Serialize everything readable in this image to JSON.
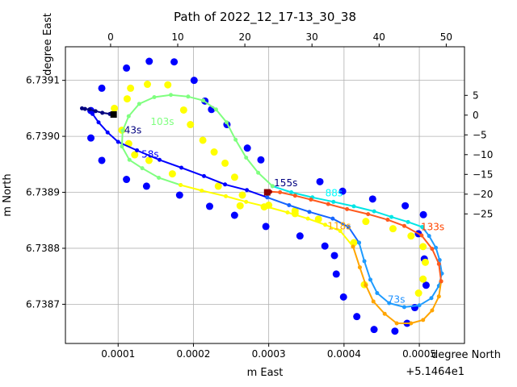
{
  "chart_data": {
    "type": "scatter",
    "title": "Path of 2022_12_17-13_30_38",
    "xlabel": "m East",
    "ylabel": "m North",
    "top_axis_label": "degree East",
    "right_axis_label": "degree North",
    "offset_text": "+5.1464e1",
    "grid": true,
    "xlim": [
      3e-05,
      0.00056
    ],
    "ylim": [
      6.73863,
      6.73916
    ],
    "x_ticks": [
      0.0001,
      0.0002,
      0.0003,
      0.0004,
      0.0005
    ],
    "x_tick_labels": [
      "0.0001",
      "0.0002",
      "0.0003",
      "0.0004",
      "0.0005"
    ],
    "y_ticks": [
      6.7387,
      6.7388,
      6.7389,
      6.739,
      6.7391
    ],
    "y_tick_labels": [
      "6.7387",
      "6.7388",
      "6.7389",
      "6.7390",
      "6.7391"
    ],
    "top_ticks": [
      0,
      10,
      20,
      30,
      40,
      50
    ],
    "top_tick_labels": [
      "0",
      "10",
      "20",
      "30",
      "40",
      "50"
    ],
    "right_ticks": [
      5,
      0,
      -5,
      -10,
      -15,
      -20,
      -25
    ],
    "right_tick_labels": [
      "5",
      "0",
      "−5",
      "−10",
      "−15",
      "−20",
      "−25"
    ],
    "time_labels": [
      {
        "label": "43s",
        "x": 0.000108,
        "y": 6.739005,
        "color": "#000080"
      },
      {
        "label": "58s",
        "x": 0.000131,
        "y": 6.738962,
        "color": "#0000ff"
      },
      {
        "label": "103s",
        "x": 0.000143,
        "y": 6.73902,
        "color": "#7fff7f"
      },
      {
        "label": "155s",
        "x": 0.000307,
        "y": 6.738911,
        "color": "#000080"
      },
      {
        "label": "88s",
        "x": 0.000375,
        "y": 6.738893,
        "color": "#00ffff"
      },
      {
        "label": "118s",
        "x": 0.000378,
        "y": 6.738834,
        "color": "#ffa500"
      },
      {
        "label": "133s",
        "x": 0.000502,
        "y": 6.738832,
        "color": "#ff4500"
      },
      {
        "label": "73s",
        "x": 0.000458,
        "y": 6.738703,
        "color": "#1e90ff"
      }
    ],
    "blue_points": [
      {
        "x": 6.38e-05,
        "y": 6.739046
      },
      {
        "x": 7.83e-05,
        "y": 6.739086
      },
      {
        "x": 6.38e-05,
        "y": 6.738997
      },
      {
        "x": 7.83e-05,
        "y": 6.738957
      },
      {
        "x": 0.0001111,
        "y": 6.739122
      },
      {
        "x": 0.0001413,
        "y": 6.739134
      },
      {
        "x": 0.0001744,
        "y": 6.739133
      },
      {
        "x": 0.0002009,
        "y": 6.7391
      },
      {
        "x": 0.0002153,
        "y": 6.739063
      },
      {
        "x": 0.000224,
        "y": 6.739048
      },
      {
        "x": 0.0002445,
        "y": 6.739021
      },
      {
        "x": 0.0002716,
        "y": 6.738979
      },
      {
        "x": 0.0002896,
        "y": 6.738958
      },
      {
        "x": 0.000368,
        "y": 6.738919
      },
      {
        "x": 0.0003981,
        "y": 6.738902
      },
      {
        "x": 0.000438,
        "y": 6.738888
      },
      {
        "x": 0.0004813,
        "y": 6.738876
      },
      {
        "x": 0.0005054,
        "y": 6.73886
      },
      {
        "x": 0.0004988,
        "y": 6.738826
      },
      {
        "x": 0.0005066,
        "y": 6.738781
      },
      {
        "x": 0.000509,
        "y": 6.738734
      },
      {
        "x": 0.000494,
        "y": 6.738694
      },
      {
        "x": 0.0004838,
        "y": 6.738666
      },
      {
        "x": 0.0004676,
        "y": 6.738652
      },
      {
        "x": 0.0004399,
        "y": 6.738655
      },
      {
        "x": 0.000417,
        "y": 6.738678
      },
      {
        "x": 0.0003993,
        "y": 6.738713
      },
      {
        "x": 0.0003897,
        "y": 6.738754
      },
      {
        "x": 0.0003873,
        "y": 6.738787
      },
      {
        "x": 0.0003746,
        "y": 6.738804
      },
      {
        "x": 0.0003415,
        "y": 6.738822
      },
      {
        "x": 0.0002962,
        "y": 6.738839
      },
      {
        "x": 0.0002546,
        "y": 6.738859
      },
      {
        "x": 0.0002215,
        "y": 6.738875
      },
      {
        "x": 0.0001816,
        "y": 6.738895
      },
      {
        "x": 0.0001377,
        "y": 6.738911
      },
      {
        "x": 0.0001111,
        "y": 6.738923
      }
    ],
    "yellow_points": [
      {
        "x": 0.0001165,
        "y": 6.739086
      },
      {
        "x": 0.0001389,
        "y": 6.739093
      },
      {
        "x": 0.000166,
        "y": 6.739092
      },
      {
        "x": 0.000187,
        "y": 6.739047
      },
      {
        "x": 0.000196,
        "y": 6.739021
      },
      {
        "x": 0.0002125,
        "y": 6.738993
      },
      {
        "x": 0.0002275,
        "y": 6.738972
      },
      {
        "x": 0.000242,
        "y": 6.738952
      },
      {
        "x": 0.0002547,
        "y": 6.738927
      },
      {
        "x": 0.000265,
        "y": 6.738895
      },
      {
        "x": 0.0003,
        "y": 6.738877
      },
      {
        "x": 0.000335,
        "y": 6.738862
      },
      {
        "x": 0.000366,
        "y": 6.738852
      },
      {
        "x": 0.000429,
        "y": 6.738848
      },
      {
        "x": 0.000465,
        "y": 6.738835
      },
      {
        "x": 0.000489,
        "y": 6.738822
      },
      {
        "x": 0.000505,
        "y": 6.738803
      },
      {
        "x": 0.000508,
        "y": 6.738775
      },
      {
        "x": 0.000505,
        "y": 6.738745
      },
      {
        "x": 0.000499,
        "y": 6.73872
      },
      {
        "x": 0.000427,
        "y": 6.738735
      },
      {
        "x": 0.000413,
        "y": 6.73881
      },
      {
        "x": 0.000335,
        "y": 6.738867
      },
      {
        "x": 0.000294,
        "y": 6.738874
      },
      {
        "x": 0.000233,
        "y": 6.738911
      },
      {
        "x": 0.000262,
        "y": 6.738876
      },
      {
        "x": 0.000172,
        "y": 6.738933
      },
      {
        "x": 0.000141,
        "y": 6.738957
      },
      {
        "x": 0.000122,
        "y": 6.738967
      },
      {
        "x": 0.000114,
        "y": 6.738987
      },
      {
        "x": 0.000105,
        "y": 6.739011
      },
      {
        "x": 9.5e-05,
        "y": 6.73905
      },
      {
        "x": 0.000112,
        "y": 6.739067
      }
    ],
    "series": [
      {
        "color": "#000080",
        "points": [
          {
            "x": 5.2e-05,
            "y": 6.73905
          },
          {
            "x": 5.6e-05,
            "y": 6.739049
          },
          {
            "x": 6.2e-05,
            "y": 6.739048
          },
          {
            "x": 7e-05,
            "y": 6.739045
          },
          {
            "x": 7.9e-05,
            "y": 6.739042
          },
          {
            "x": 8.9e-05,
            "y": 6.73904
          },
          {
            "x": 9.4e-05,
            "y": 6.739039
          }
        ]
      },
      {
        "color": "#0000ff",
        "points": [
          {
            "x": 6.6e-05,
            "y": 6.73904
          },
          {
            "x": 7.4e-05,
            "y": 6.739025
          },
          {
            "x": 8.6e-05,
            "y": 6.739007
          },
          {
            "x": 0.0001,
            "y": 6.73899
          },
          {
            "x": 0.000125,
            "y": 6.738975
          },
          {
            "x": 0.000155,
            "y": 6.738958
          },
          {
            "x": 0.000184,
            "y": 6.738944
          },
          {
            "x": 0.000214,
            "y": 6.738929
          },
          {
            "x": 0.000242,
            "y": 6.738914
          },
          {
            "x": 0.000271,
            "y": 6.738904
          },
          {
            "x": 0.000298,
            "y": 6.738891
          }
        ]
      },
      {
        "color": "#1565ff",
        "points": [
          {
            "x": 0.000298,
            "y": 6.738891
          },
          {
            "x": 0.000327,
            "y": 6.738877
          },
          {
            "x": 0.000354,
            "y": 6.738865
          },
          {
            "x": 0.000385,
            "y": 6.738853
          },
          {
            "x": 0.000406,
            "y": 6.738838
          },
          {
            "x": 0.00042,
            "y": 6.73881
          }
        ]
      },
      {
        "color": "#1e9bff",
        "points": [
          {
            "x": 0.00042,
            "y": 6.73881
          },
          {
            "x": 0.000427,
            "y": 6.738777
          },
          {
            "x": 0.000435,
            "y": 6.738744
          },
          {
            "x": 0.000444,
            "y": 6.73872
          },
          {
            "x": 0.00046,
            "y": 6.738702
          },
          {
            "x": 0.00048,
            "y": 6.738695
          },
          {
            "x": 0.0005,
            "y": 6.738698
          },
          {
            "x": 0.000516,
            "y": 6.738711
          },
          {
            "x": 0.000526,
            "y": 6.738733
          },
          {
            "x": 0.00053,
            "y": 6.738755
          },
          {
            "x": 0.000527,
            "y": 6.738779
          },
          {
            "x": 0.000522,
            "y": 6.738801
          },
          {
            "x": 0.000513,
            "y": 6.738822
          },
          {
            "x": 0.000504,
            "y": 6.738838
          }
        ]
      },
      {
        "color": "#00e5e5",
        "points": [
          {
            "x": 0.000504,
            "y": 6.738838
          },
          {
            "x": 0.000485,
            "y": 6.738847
          },
          {
            "x": 0.000463,
            "y": 6.738856
          },
          {
            "x": 0.00044,
            "y": 6.738866
          },
          {
            "x": 0.000413,
            "y": 6.738875
          },
          {
            "x": 0.000386,
            "y": 6.738883
          },
          {
            "x": 0.000358,
            "y": 6.738891
          },
          {
            "x": 0.00033,
            "y": 6.7389
          },
          {
            "x": 0.000305,
            "y": 6.738911
          }
        ]
      },
      {
        "color": "#7fff7f",
        "points": [
          {
            "x": 0.000305,
            "y": 6.738911
          },
          {
            "x": 0.000286,
            "y": 6.738935
          },
          {
            "x": 0.00027,
            "y": 6.738962
          },
          {
            "x": 0.000256,
            "y": 6.738994
          },
          {
            "x": 0.000244,
            "y": 6.739025
          },
          {
            "x": 0.00023,
            "y": 6.739048
          },
          {
            "x": 0.000213,
            "y": 6.739064
          },
          {
            "x": 0.000193,
            "y": 6.739071
          },
          {
            "x": 0.00017,
            "y": 6.739074
          },
          {
            "x": 0.000148,
            "y": 6.73907
          },
          {
            "x": 0.000128,
            "y": 6.739058
          },
          {
            "x": 0.000114,
            "y": 6.739036
          },
          {
            "x": 0.000106,
            "y": 6.73901
          },
          {
            "x": 0.000105,
            "y": 6.738982
          },
          {
            "x": 0.000115,
            "y": 6.738958
          },
          {
            "x": 0.000132,
            "y": 6.738943
          },
          {
            "x": 0.000154,
            "y": 6.738926
          },
          {
            "x": 0.000183,
            "y": 6.738913
          }
        ]
      },
      {
        "color": "#ffff00",
        "points": [
          {
            "x": 0.000183,
            "y": 6.738913
          },
          {
            "x": 0.000211,
            "y": 6.738903
          },
          {
            "x": 0.000243,
            "y": 6.738893
          },
          {
            "x": 0.00027,
            "y": 6.738883
          },
          {
            "x": 0.000298,
            "y": 6.738874
          },
          {
            "x": 0.000325,
            "y": 6.738864
          },
          {
            "x": 0.000352,
            "y": 6.738853
          },
          {
            "x": 0.000375,
            "y": 6.738842
          },
          {
            "x": 0.000395,
            "y": 6.738831
          },
          {
            "x": 0.000412,
            "y": 6.738803
          }
        ]
      },
      {
        "color": "#ffa500",
        "points": [
          {
            "x": 0.000412,
            "y": 6.738803
          },
          {
            "x": 0.000421,
            "y": 6.738766
          },
          {
            "x": 0.000429,
            "y": 6.738734
          },
          {
            "x": 0.000439,
            "y": 6.738705
          },
          {
            "x": 0.000454,
            "y": 6.738683
          },
          {
            "x": 0.00047,
            "y": 6.738666
          },
          {
            "x": 0.000489,
            "y": 6.738666
          },
          {
            "x": 0.000505,
            "y": 6.738672
          },
          {
            "x": 0.000517,
            "y": 6.738689
          },
          {
            "x": 0.000526,
            "y": 6.738714
          },
          {
            "x": 0.000529,
            "y": 6.738741
          }
        ]
      },
      {
        "color": "#ff5a1e",
        "points": [
          {
            "x": 0.000529,
            "y": 6.738741
          },
          {
            "x": 0.000526,
            "y": 6.738772
          },
          {
            "x": 0.000517,
            "y": 6.738799
          },
          {
            "x": 0.000503,
            "y": 6.738823
          },
          {
            "x": 0.00048,
            "y": 6.73884
          },
          {
            "x": 0.000458,
            "y": 6.738851
          },
          {
            "x": 0.000432,
            "y": 6.738861
          },
          {
            "x": 0.000404,
            "y": 6.73887
          },
          {
            "x": 0.000379,
            "y": 6.738879
          },
          {
            "x": 0.000356,
            "y": 6.738887
          },
          {
            "x": 0.000335,
            "y": 6.738894
          },
          {
            "x": 0.000315,
            "y": 6.7389
          },
          {
            "x": 0.000302,
            "y": 6.738901
          }
        ]
      },
      {
        "color": "#a00000",
        "points": [
          {
            "x": 0.000302,
            "y": 6.738901
          },
          {
            "x": 0.000298,
            "y": 6.7389
          }
        ]
      }
    ]
  }
}
